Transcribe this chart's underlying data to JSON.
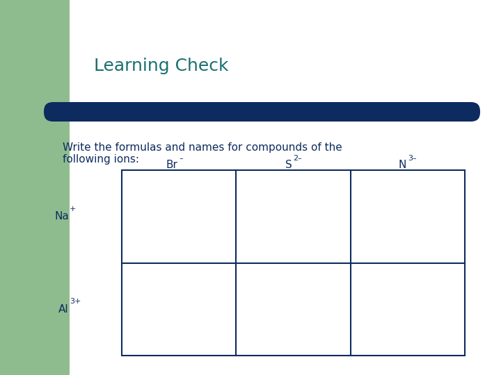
{
  "title": "Learning Check",
  "title_color": "#1a7070",
  "title_fontsize": 18,
  "slide_bg": "#ffffff",
  "green_color": "#8fbc8f",
  "navy_color": "#0d2b5e",
  "body_text_line1": "Write the formulas and names for compounds of the",
  "body_text_line2": "following ions:",
  "body_text_color": "#0d2b5e",
  "body_fontsize": 11,
  "col_labels": [
    "Br",
    "S",
    "N"
  ],
  "col_sups": [
    "–",
    "2–",
    "3–"
  ],
  "row_labels": [
    "Na",
    "Al"
  ],
  "row_sups": [
    "+",
    "3+"
  ],
  "label_fontsize": 11,
  "sup_fontsize": 8,
  "table_border_color": "#0d2b5e",
  "table_lw": 1.5
}
